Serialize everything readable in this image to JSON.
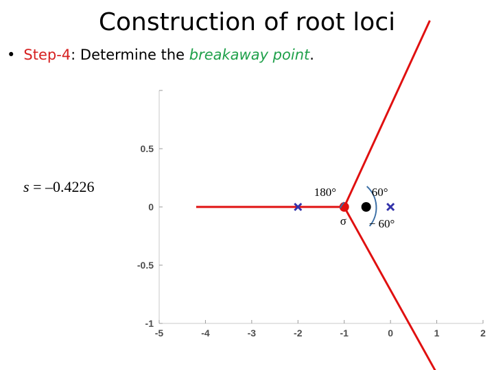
{
  "slide": {
    "title": "Construction of root loci",
    "bullet": {
      "step": "Step-4",
      "text_a": ": Determine the ",
      "emph": "breakaway point",
      "text_b": "."
    },
    "equation": {
      "var": "s",
      "rest": " = –0.4226"
    }
  },
  "chart_data": {
    "type": "root-locus",
    "xlim": [
      -5,
      2
    ],
    "ylim": [
      -1,
      1
    ],
    "x_ticks": [
      "-5",
      "-4",
      "-3",
      "-2",
      "-1",
      "0",
      "1",
      "2"
    ],
    "y_ticks": [
      "0.5",
      "0",
      "-0.5",
      "-1"
    ],
    "poles": [
      [
        -2,
        0
      ],
      [
        -1,
        0
      ],
      [
        0,
        0
      ]
    ],
    "breakaway_point": [
      -0.4226,
      0
    ],
    "asymptote_center": [
      -1,
      0
    ],
    "branches": [
      {
        "from": [
          -4.2,
          0
        ],
        "to": [
          -1,
          0
        ]
      },
      {
        "from": [
          -1,
          0
        ],
        "to": [
          0.85,
          1.6
        ]
      },
      {
        "from": [
          -1,
          0
        ],
        "to": [
          1.1,
          -1.5
        ]
      }
    ],
    "angle_labels": {
      "a180": "180°",
      "a60": "60°",
      "am60": "− 60°",
      "sigma": "σ"
    },
    "colors": {
      "locus": "#e01010",
      "pole": "#3333aa",
      "arc": "#3a6ea5"
    }
  }
}
